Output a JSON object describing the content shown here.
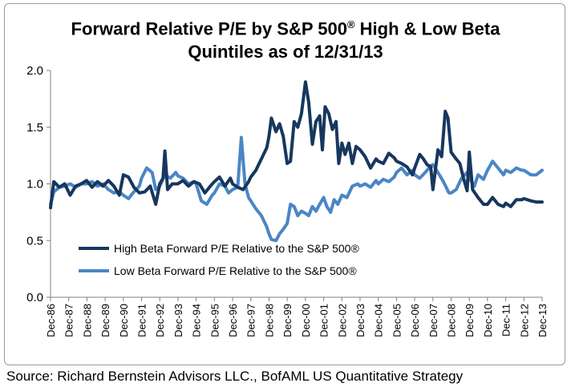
{
  "chart_data": {
    "type": "line",
    "title_main": "Forward Relative P/E by S&P 500",
    "title_reg": "®",
    "title_tail": " High & Low Beta",
    "title_line2": "Quintiles as of 12/31/13",
    "source": "Source: Richard Bernstein Advisors LLC., BofAML US Quantitative Strategy",
    "ylim": [
      0,
      2
    ],
    "yticks": [
      "0.0",
      "0.5",
      "1.0",
      "1.5",
      "2.0"
    ],
    "xlim": [
      1986.92,
      2013.92
    ],
    "xticks": [
      "Dec-86",
      "Dec-87",
      "Dec-88",
      "Dec-89",
      "Dec-90",
      "Dec-91",
      "Dec-92",
      "Dec-93",
      "Dec-94",
      "Dec-95",
      "Dec-96",
      "Dec-97",
      "Dec-98",
      "Dec-99",
      "Dec-00",
      "Dec-01",
      "Dec-02",
      "Dec-03",
      "Dec-04",
      "Dec-05",
      "Dec-06",
      "Dec-07",
      "Dec-08",
      "Dec-09",
      "Dec-10",
      "Dec-11",
      "Dec-12",
      "Dec-13"
    ],
    "grid": false,
    "legend_position": "lower-left",
    "series": [
      {
        "name": "High Beta Forward P/E Relative to the S&P 500®",
        "color": "#17375e",
        "points": [
          [
            1986.92,
            0.79
          ],
          [
            1987.1,
            1.02
          ],
          [
            1987.4,
            0.97
          ],
          [
            1987.7,
            1.0
          ],
          [
            1988.0,
            0.9
          ],
          [
            1988.3,
            0.98
          ],
          [
            1988.6,
            1.0
          ],
          [
            1988.9,
            1.03
          ],
          [
            1989.2,
            0.97
          ],
          [
            1989.5,
            1.02
          ],
          [
            1989.8,
            0.98
          ],
          [
            1990.1,
            1.03
          ],
          [
            1990.4,
            0.98
          ],
          [
            1990.7,
            0.9
          ],
          [
            1990.92,
            1.08
          ],
          [
            1991.2,
            1.06
          ],
          [
            1991.5,
            0.97
          ],
          [
            1991.8,
            0.92
          ],
          [
            1992.1,
            0.93
          ],
          [
            1992.4,
            0.98
          ],
          [
            1992.7,
            0.82
          ],
          [
            1992.92,
            1.0
          ],
          [
            1993.1,
            1.05
          ],
          [
            1993.2,
            1.29
          ],
          [
            1993.35,
            0.95
          ],
          [
            1993.6,
            1.0
          ],
          [
            1993.9,
            1.0
          ],
          [
            1994.2,
            1.03
          ],
          [
            1994.5,
            0.98
          ],
          [
            1994.8,
            1.02
          ],
          [
            1995.1,
            1.0
          ],
          [
            1995.4,
            0.92
          ],
          [
            1995.7,
            0.98
          ],
          [
            1995.92,
            1.02
          ],
          [
            1996.2,
            1.06
          ],
          [
            1996.5,
            0.98
          ],
          [
            1996.8,
            1.05
          ],
          [
            1996.92,
            1.0
          ],
          [
            1997.2,
            0.97
          ],
          [
            1997.5,
            0.95
          ],
          [
            1997.8,
            1.02
          ],
          [
            1997.92,
            1.06
          ],
          [
            1998.2,
            1.12
          ],
          [
            1998.5,
            1.22
          ],
          [
            1998.8,
            1.32
          ],
          [
            1998.92,
            1.42
          ],
          [
            1999.05,
            1.58
          ],
          [
            1999.3,
            1.46
          ],
          [
            1999.5,
            1.53
          ],
          [
            1999.7,
            1.42
          ],
          [
            1999.92,
            1.18
          ],
          [
            2000.1,
            1.2
          ],
          [
            2000.3,
            1.55
          ],
          [
            2000.5,
            1.5
          ],
          [
            2000.7,
            1.62
          ],
          [
            2000.92,
            1.9
          ],
          [
            2001.1,
            1.72
          ],
          [
            2001.3,
            1.35
          ],
          [
            2001.5,
            1.55
          ],
          [
            2001.7,
            1.6
          ],
          [
            2001.85,
            1.3
          ],
          [
            2002.0,
            1.68
          ],
          [
            2002.2,
            1.62
          ],
          [
            2002.4,
            1.48
          ],
          [
            2002.6,
            1.55
          ],
          [
            2002.75,
            1.18
          ],
          [
            2002.92,
            1.36
          ],
          [
            2003.1,
            1.26
          ],
          [
            2003.3,
            1.36
          ],
          [
            2003.5,
            1.18
          ],
          [
            2003.7,
            1.33
          ],
          [
            2003.92,
            1.3
          ],
          [
            2004.2,
            1.24
          ],
          [
            2004.5,
            1.14
          ],
          [
            2004.8,
            1.22
          ],
          [
            2004.92,
            1.2
          ],
          [
            2005.2,
            1.18
          ],
          [
            2005.5,
            1.27
          ],
          [
            2005.8,
            1.23
          ],
          [
            2005.92,
            1.2
          ],
          [
            2006.2,
            1.18
          ],
          [
            2006.5,
            1.15
          ],
          [
            2006.8,
            1.08
          ],
          [
            2006.92,
            1.14
          ],
          [
            2007.2,
            1.26
          ],
          [
            2007.4,
            1.22
          ],
          [
            2007.6,
            1.17
          ],
          [
            2007.8,
            1.15
          ],
          [
            2007.92,
            0.95
          ],
          [
            2008.2,
            1.3
          ],
          [
            2008.4,
            1.24
          ],
          [
            2008.6,
            1.64
          ],
          [
            2008.75,
            1.58
          ],
          [
            2008.92,
            1.28
          ],
          [
            2009.2,
            1.22
          ],
          [
            2009.4,
            1.18
          ],
          [
            2009.6,
            1.05
          ],
          [
            2009.8,
            0.94
          ],
          [
            2009.92,
            1.28
          ],
          [
            2010.1,
            0.95
          ],
          [
            2010.4,
            0.88
          ],
          [
            2010.7,
            0.82
          ],
          [
            2010.92,
            0.82
          ],
          [
            2011.2,
            0.88
          ],
          [
            2011.5,
            0.82
          ],
          [
            2011.8,
            0.8
          ],
          [
            2011.92,
            0.83
          ],
          [
            2012.2,
            0.8
          ],
          [
            2012.5,
            0.86
          ],
          [
            2012.8,
            0.86
          ],
          [
            2012.92,
            0.87
          ],
          [
            2013.3,
            0.85
          ],
          [
            2013.6,
            0.84
          ],
          [
            2013.92,
            0.84
          ]
        ]
      },
      {
        "name": "Low Beta Forward P/E Relative to the S&P 500®",
        "color": "#4a86c5",
        "points": [
          [
            1986.92,
            0.82
          ],
          [
            1987.1,
            0.93
          ],
          [
            1987.4,
            0.97
          ],
          [
            1987.7,
            0.98
          ],
          [
            1988.0,
            1.0
          ],
          [
            1988.3,
            0.97
          ],
          [
            1988.6,
            1.0
          ],
          [
            1988.9,
            1.0
          ],
          [
            1989.2,
            1.02
          ],
          [
            1989.5,
            0.98
          ],
          [
            1989.8,
            1.0
          ],
          [
            1990.1,
            0.95
          ],
          [
            1990.4,
            0.92
          ],
          [
            1990.7,
            0.93
          ],
          [
            1990.92,
            0.9
          ],
          [
            1991.2,
            0.87
          ],
          [
            1991.5,
            0.93
          ],
          [
            1991.8,
            0.98
          ],
          [
            1991.92,
            1.05
          ],
          [
            1992.2,
            1.14
          ],
          [
            1992.5,
            1.1
          ],
          [
            1992.7,
            0.95
          ],
          [
            1992.92,
            0.98
          ],
          [
            1993.2,
            1.08
          ],
          [
            1993.5,
            1.05
          ],
          [
            1993.8,
            1.1
          ],
          [
            1993.92,
            1.07
          ],
          [
            1994.2,
            1.05
          ],
          [
            1994.5,
            1.0
          ],
          [
            1994.8,
            1.02
          ],
          [
            1994.92,
            1.0
          ],
          [
            1995.2,
            0.85
          ],
          [
            1995.5,
            0.82
          ],
          [
            1995.8,
            0.9
          ],
          [
            1995.92,
            0.92
          ],
          [
            1996.2,
            1.0
          ],
          [
            1996.5,
            0.98
          ],
          [
            1996.7,
            0.92
          ],
          [
            1996.92,
            0.95
          ],
          [
            1997.2,
            0.97
          ],
          [
            1997.4,
            1.41
          ],
          [
            1997.6,
            1.0
          ],
          [
            1997.8,
            0.88
          ],
          [
            1997.92,
            0.85
          ],
          [
            1998.2,
            0.78
          ],
          [
            1998.5,
            0.72
          ],
          [
            1998.8,
            0.62
          ],
          [
            1998.92,
            0.56
          ],
          [
            1999.05,
            0.51
          ],
          [
            1999.3,
            0.5
          ],
          [
            1999.5,
            0.56
          ],
          [
            1999.7,
            0.6
          ],
          [
            1999.92,
            0.65
          ],
          [
            2000.1,
            0.82
          ],
          [
            2000.3,
            0.8
          ],
          [
            2000.5,
            0.72
          ],
          [
            2000.7,
            0.76
          ],
          [
            2000.92,
            0.74
          ],
          [
            2001.1,
            0.72
          ],
          [
            2001.3,
            0.8
          ],
          [
            2001.5,
            0.76
          ],
          [
            2001.7,
            0.82
          ],
          [
            2001.92,
            0.88
          ],
          [
            2002.1,
            0.8
          ],
          [
            2002.3,
            0.75
          ],
          [
            2002.5,
            0.86
          ],
          [
            2002.7,
            0.82
          ],
          [
            2002.92,
            0.9
          ],
          [
            2003.2,
            0.88
          ],
          [
            2003.5,
            0.98
          ],
          [
            2003.8,
            1.0
          ],
          [
            2003.92,
            0.98
          ],
          [
            2004.2,
            1.0
          ],
          [
            2004.5,
            0.97
          ],
          [
            2004.8,
            1.03
          ],
          [
            2004.92,
            1.0
          ],
          [
            2005.2,
            1.04
          ],
          [
            2005.5,
            1.02
          ],
          [
            2005.8,
            1.06
          ],
          [
            2005.92,
            1.1
          ],
          [
            2006.2,
            1.14
          ],
          [
            2006.5,
            1.08
          ],
          [
            2006.8,
            1.12
          ],
          [
            2006.92,
            1.08
          ],
          [
            2007.2,
            1.05
          ],
          [
            2007.5,
            1.1
          ],
          [
            2007.8,
            1.16
          ],
          [
            2007.92,
            1.17
          ],
          [
            2008.2,
            1.1
          ],
          [
            2008.5,
            1.02
          ],
          [
            2008.8,
            0.92
          ],
          [
            2008.92,
            0.92
          ],
          [
            2009.2,
            0.95
          ],
          [
            2009.5,
            1.05
          ],
          [
            2009.8,
            1.1
          ],
          [
            2009.92,
            1.05
          ],
          [
            2010.2,
            0.98
          ],
          [
            2010.4,
            1.08
          ],
          [
            2010.7,
            1.04
          ],
          [
            2010.92,
            1.12
          ],
          [
            2011.2,
            1.2
          ],
          [
            2011.5,
            1.14
          ],
          [
            2011.8,
            1.08
          ],
          [
            2011.92,
            1.12
          ],
          [
            2012.2,
            1.1
          ],
          [
            2012.5,
            1.14
          ],
          [
            2012.8,
            1.12
          ],
          [
            2012.92,
            1.12
          ],
          [
            2013.3,
            1.08
          ],
          [
            2013.6,
            1.08
          ],
          [
            2013.92,
            1.12
          ]
        ]
      }
    ]
  }
}
